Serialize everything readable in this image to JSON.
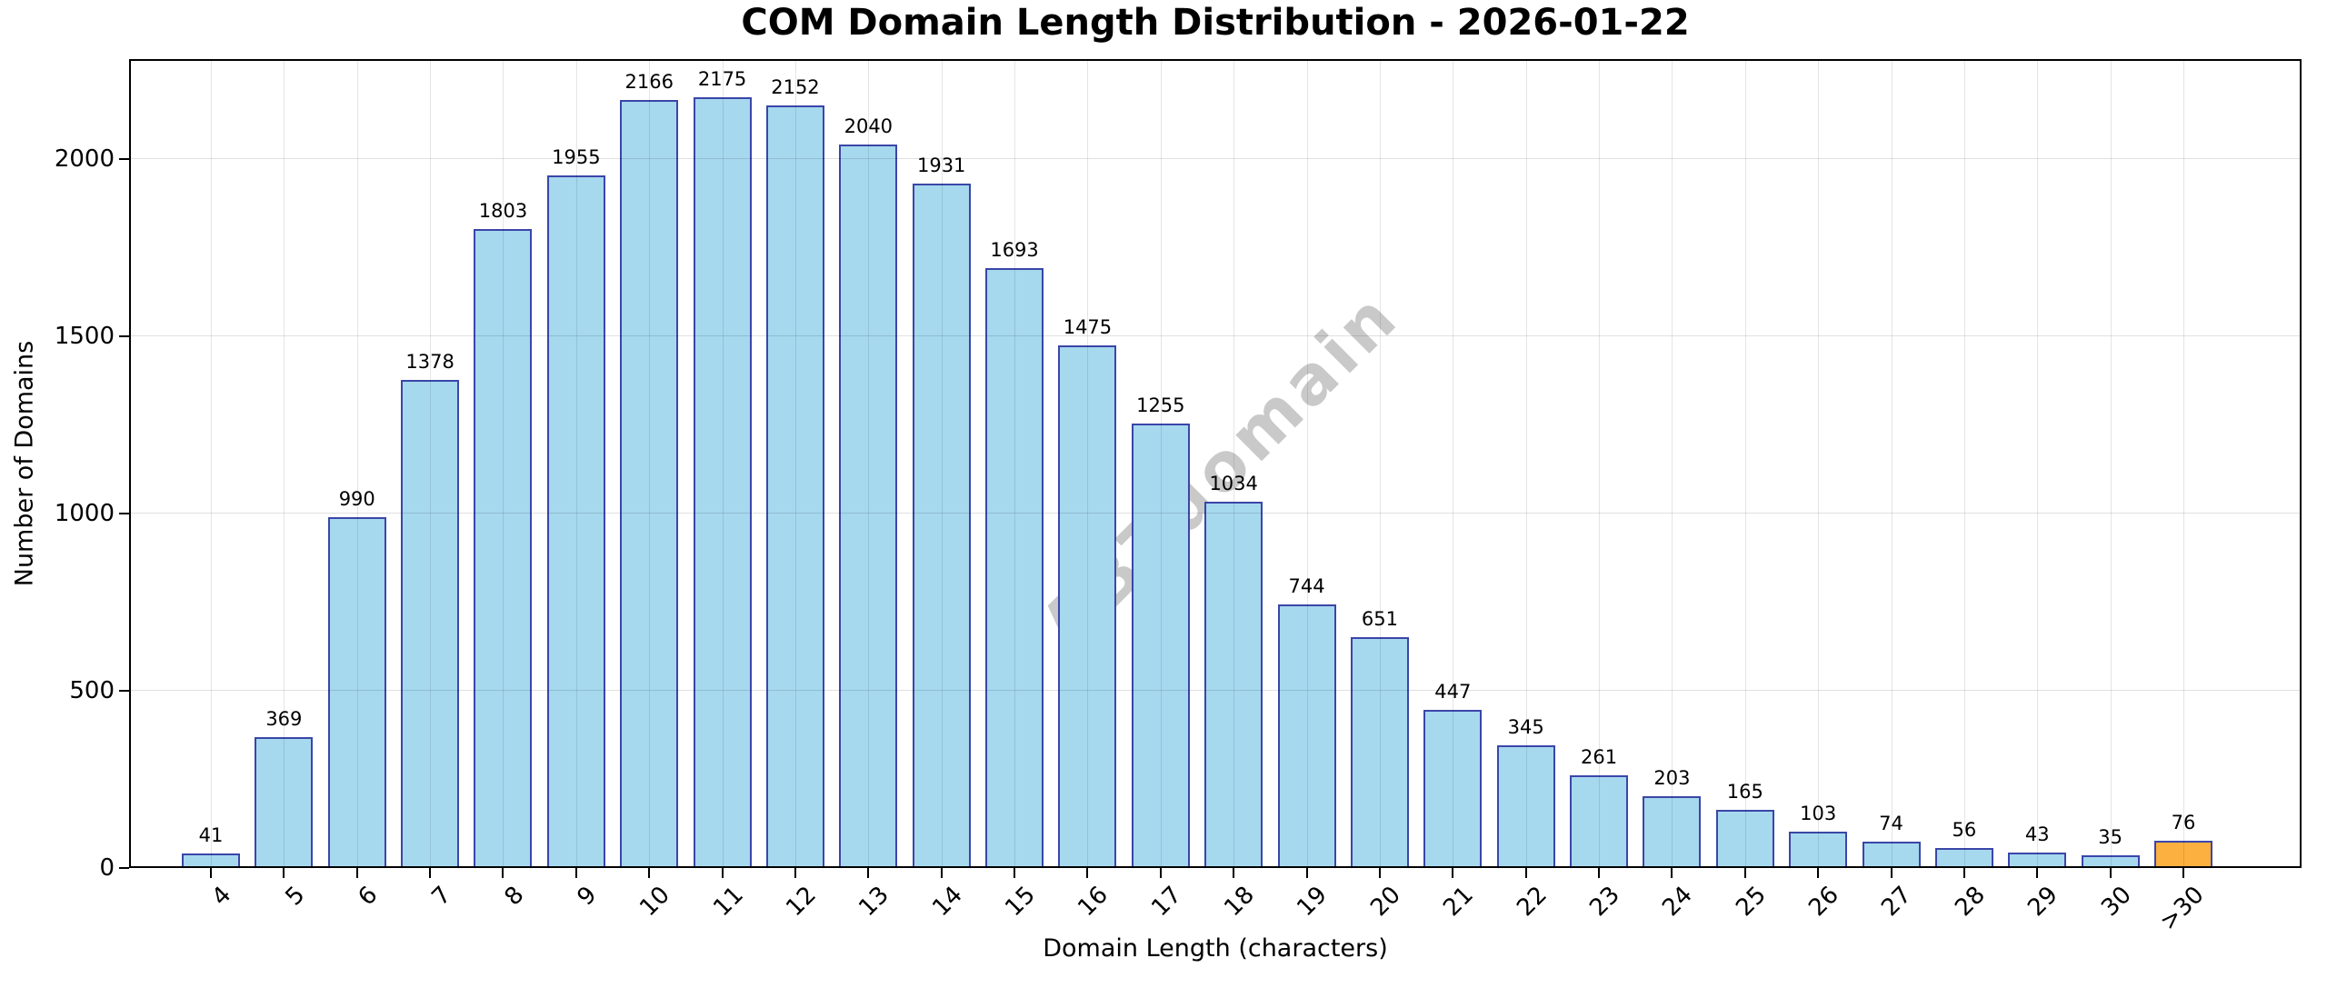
{
  "title": "COM Domain Length Distribution - 2026-01-22",
  "watermark": "ABTdomain",
  "chart_data": {
    "type": "bar",
    "title": "COM Domain Length Distribution - 2026-01-22",
    "xlabel": "Domain Length (characters)",
    "ylabel": "Number of Domains",
    "categories": [
      "4",
      "5",
      "6",
      "7",
      "8",
      "9",
      "10",
      "11",
      "12",
      "13",
      "14",
      "15",
      "16",
      "17",
      "18",
      "19",
      "20",
      "21",
      "22",
      "23",
      "24",
      "25",
      "26",
      "27",
      "28",
      "29",
      "30",
      ">30"
    ],
    "values": [
      41,
      369,
      990,
      1378,
      1803,
      1955,
      2166,
      2175,
      2152,
      2040,
      1931,
      1693,
      1475,
      1255,
      1034,
      744,
      651,
      447,
      345,
      261,
      203,
      165,
      103,
      74,
      56,
      43,
      35,
      76
    ],
    "yticks": [
      0,
      500,
      1000,
      1500,
      2000
    ],
    "ylim": [
      0,
      2282
    ],
    "grid": true,
    "grid_position": "above-bars",
    "legend": "none",
    "bar_fill": "#a6d8ee",
    "bar_edge": "#3a46a8",
    "highlight_index": 27,
    "highlight_fill": "#fbb040",
    "value_label_color": "#000000",
    "xtick_rotation_deg": 45
  }
}
